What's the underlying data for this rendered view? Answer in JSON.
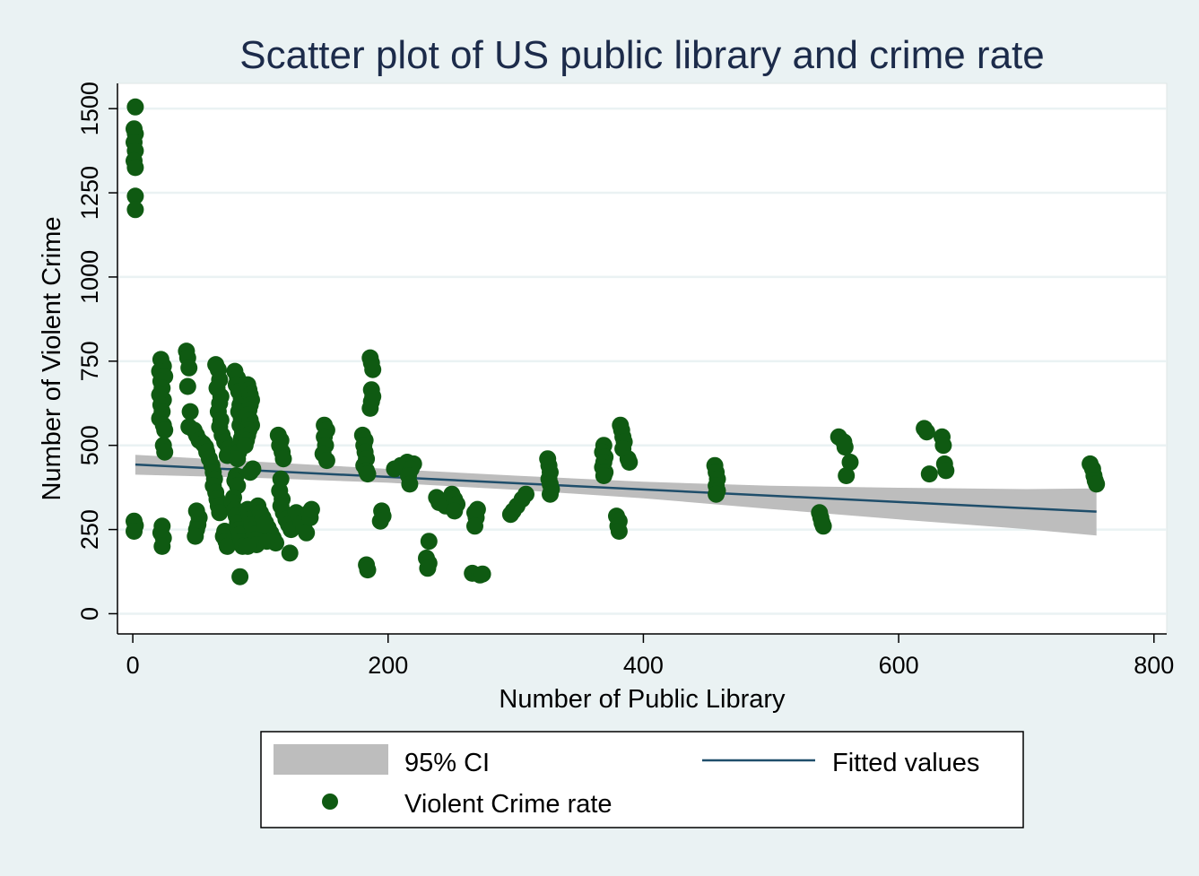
{
  "chart_data": {
    "type": "scatter",
    "title": "Scatter plot of US public library and crime rate",
    "xlabel": "Number of Public Library",
    "ylabel": "Number of Violent Crime",
    "xlim": [
      -12,
      810
    ],
    "ylim": [
      -60,
      1575
    ],
    "x_ticks": [
      0,
      200,
      400,
      600,
      800
    ],
    "y_ticks": [
      0,
      250,
      500,
      750,
      1000,
      1250,
      1500
    ],
    "grid": true,
    "legend_position": "bottom",
    "colors": {
      "points": "#0f5a12",
      "fit_line": "#1f4e6b",
      "ci_band": "#bdbdbd",
      "page_background": "#eaf2f3",
      "plot_background": "#ffffff",
      "title": "#1c2b4a"
    },
    "legend": {
      "ci": "95% CI",
      "fit": "Fitted values",
      "points": "Violent Crime rate"
    },
    "fitted_line": {
      "name": "Fitted values",
      "x": [
        2,
        755
      ],
      "y": [
        443,
        303
      ]
    },
    "ci_band": {
      "name": "95% CI",
      "x": [
        2,
        100,
        200,
        300,
        400,
        500,
        600,
        700,
        755
      ],
      "lower": [
        413,
        403,
        389,
        368,
        343,
        311,
        280,
        251,
        232
      ],
      "upper": [
        472,
        451,
        430,
        410,
        392,
        380,
        374,
        370,
        372
      ]
    },
    "series": [
      {
        "name": "Violent Crime rate",
        "points": [
          [
            2,
            1505
          ],
          [
            1,
            1440
          ],
          [
            2,
            1425
          ],
          [
            1,
            1400
          ],
          [
            2,
            1375
          ],
          [
            1,
            1345
          ],
          [
            2,
            1325
          ],
          [
            2,
            1240
          ],
          [
            2,
            1200
          ],
          [
            1,
            275
          ],
          [
            2,
            262
          ],
          [
            1,
            245
          ],
          [
            22,
            755
          ],
          [
            24,
            735
          ],
          [
            21,
            720
          ],
          [
            25,
            705
          ],
          [
            22,
            690
          ],
          [
            23,
            670
          ],
          [
            21,
            650
          ],
          [
            24,
            635
          ],
          [
            22,
            620
          ],
          [
            23,
            600
          ],
          [
            21,
            580
          ],
          [
            24,
            560
          ],
          [
            25,
            545
          ],
          [
            24,
            500
          ],
          [
            25,
            480
          ],
          [
            23,
            260
          ],
          [
            22,
            240
          ],
          [
            24,
            225
          ],
          [
            23,
            200
          ],
          [
            42,
            780
          ],
          [
            43,
            760
          ],
          [
            44,
            730
          ],
          [
            43,
            675
          ],
          [
            45,
            600
          ],
          [
            44,
            555
          ],
          [
            48,
            545
          ],
          [
            50,
            530
          ],
          [
            52,
            515
          ],
          [
            55,
            505
          ],
          [
            57,
            495
          ],
          [
            58,
            480
          ],
          [
            60,
            460
          ],
          [
            62,
            440
          ],
          [
            63,
            420
          ],
          [
            64,
            400
          ],
          [
            63,
            380
          ],
          [
            65,
            360
          ],
          [
            66,
            340
          ],
          [
            67,
            320
          ],
          [
            68,
            300
          ],
          [
            50,
            305
          ],
          [
            52,
            285
          ],
          [
            51,
            265
          ],
          [
            50,
            250
          ],
          [
            49,
            230
          ],
          [
            65,
            740
          ],
          [
            67,
            725
          ],
          [
            68,
            695
          ],
          [
            66,
            670
          ],
          [
            69,
            645
          ],
          [
            68,
            625
          ],
          [
            67,
            600
          ],
          [
            69,
            575
          ],
          [
            68,
            555
          ],
          [
            70,
            530
          ],
          [
            72,
            510
          ],
          [
            75,
            490
          ],
          [
            74,
            470
          ],
          [
            72,
            245
          ],
          [
            71,
            230
          ],
          [
            73,
            215
          ],
          [
            74,
            200
          ],
          [
            80,
            720
          ],
          [
            82,
            700
          ],
          [
            81,
            680
          ],
          [
            83,
            660
          ],
          [
            85,
            640
          ],
          [
            84,
            620
          ],
          [
            83,
            600
          ],
          [
            85,
            580
          ],
          [
            84,
            560
          ],
          [
            86,
            540
          ],
          [
            85,
            520
          ],
          [
            84,
            500
          ],
          [
            83,
            480
          ],
          [
            82,
            460
          ],
          [
            81,
            410
          ],
          [
            80,
            395
          ],
          [
            82,
            380
          ],
          [
            79,
            345
          ],
          [
            78,
            330
          ],
          [
            80,
            310
          ],
          [
            81,
            290
          ],
          [
            82,
            270
          ],
          [
            83,
            250
          ],
          [
            84,
            235
          ],
          [
            85,
            215
          ],
          [
            86,
            200
          ],
          [
            84,
            110
          ],
          [
            90,
            680
          ],
          [
            91,
            665
          ],
          [
            92,
            650
          ],
          [
            93,
            635
          ],
          [
            92,
            620
          ],
          [
            91,
            605
          ],
          [
            90,
            590
          ],
          [
            92,
            575
          ],
          [
            93,
            560
          ],
          [
            91,
            545
          ],
          [
            90,
            530
          ],
          [
            89,
            515
          ],
          [
            88,
            500
          ],
          [
            94,
            430
          ],
          [
            92,
            420
          ],
          [
            90,
            310
          ],
          [
            91,
            295
          ],
          [
            92,
            280
          ],
          [
            93,
            265
          ],
          [
            94,
            250
          ],
          [
            95,
            235
          ],
          [
            96,
            220
          ],
          [
            97,
            205
          ],
          [
            90,
            200
          ],
          [
            98,
            320
          ],
          [
            100,
            300
          ],
          [
            102,
            285
          ],
          [
            104,
            270
          ],
          [
            106,
            255
          ],
          [
            108,
            240
          ],
          [
            110,
            225
          ],
          [
            112,
            210
          ],
          [
            105,
            215
          ],
          [
            103,
            265
          ],
          [
            114,
            530
          ],
          [
            116,
            515
          ],
          [
            115,
            500
          ],
          [
            117,
            480
          ],
          [
            118,
            460
          ],
          [
            116,
            400
          ],
          [
            115,
            365
          ],
          [
            117,
            340
          ],
          [
            116,
            320
          ],
          [
            118,
            300
          ],
          [
            120,
            280
          ],
          [
            122,
            265
          ],
          [
            124,
            250
          ],
          [
            123,
            180
          ],
          [
            128,
            300
          ],
          [
            130,
            285
          ],
          [
            132,
            270
          ],
          [
            134,
            255
          ],
          [
            136,
            240
          ],
          [
            138,
            300
          ],
          [
            139,
            285
          ],
          [
            140,
            310
          ],
          [
            150,
            560
          ],
          [
            152,
            545
          ],
          [
            150,
            525
          ],
          [
            151,
            500
          ],
          [
            149,
            475
          ],
          [
            152,
            455
          ],
          [
            180,
            530
          ],
          [
            182,
            515
          ],
          [
            181,
            500
          ],
          [
            182,
            480
          ],
          [
            183,
            460
          ],
          [
            181,
            440
          ],
          [
            183,
            425
          ],
          [
            184,
            415
          ],
          [
            183,
            145
          ],
          [
            184,
            130
          ],
          [
            186,
            760
          ],
          [
            187,
            745
          ],
          [
            188,
            725
          ],
          [
            187,
            665
          ],
          [
            188,
            645
          ],
          [
            187,
            630
          ],
          [
            186,
            610
          ],
          [
            195,
            305
          ],
          [
            196,
            290
          ],
          [
            194,
            275
          ],
          [
            205,
            430
          ],
          [
            210,
            440
          ],
          [
            215,
            450
          ],
          [
            220,
            445
          ],
          [
            218,
            430
          ],
          [
            216,
            410
          ],
          [
            217,
            385
          ],
          [
            232,
            215
          ],
          [
            230,
            165
          ],
          [
            232,
            150
          ],
          [
            231,
            135
          ],
          [
            238,
            345
          ],
          [
            240,
            330
          ],
          [
            245,
            320
          ],
          [
            250,
            355
          ],
          [
            252,
            340
          ],
          [
            254,
            325
          ],
          [
            252,
            305
          ],
          [
            268,
            300
          ],
          [
            269,
            285
          ],
          [
            270,
            310
          ],
          [
            268,
            260
          ],
          [
            266,
            120
          ],
          [
            272,
            115
          ],
          [
            274,
            118
          ],
          [
            296,
            295
          ],
          [
            298,
            305
          ],
          [
            301,
            320
          ],
          [
            305,
            340
          ],
          [
            308,
            355
          ],
          [
            325,
            460
          ],
          [
            326,
            440
          ],
          [
            327,
            420
          ],
          [
            326,
            400
          ],
          [
            327,
            385
          ],
          [
            328,
            370
          ],
          [
            327,
            355
          ],
          [
            369,
            500
          ],
          [
            368,
            480
          ],
          [
            370,
            465
          ],
          [
            369,
            450
          ],
          [
            368,
            435
          ],
          [
            370,
            420
          ],
          [
            369,
            410
          ],
          [
            382,
            560
          ],
          [
            383,
            545
          ],
          [
            384,
            525
          ],
          [
            385,
            510
          ],
          [
            384,
            490
          ],
          [
            388,
            460
          ],
          [
            389,
            450
          ],
          [
            379,
            290
          ],
          [
            381,
            275
          ],
          [
            380,
            260
          ],
          [
            381,
            245
          ],
          [
            456,
            440
          ],
          [
            457,
            420
          ],
          [
            458,
            400
          ],
          [
            457,
            380
          ],
          [
            458,
            365
          ],
          [
            457,
            355
          ],
          [
            538,
            300
          ],
          [
            539,
            285
          ],
          [
            540,
            270
          ],
          [
            541,
            260
          ],
          [
            553,
            525
          ],
          [
            557,
            510
          ],
          [
            558,
            495
          ],
          [
            559,
            410
          ],
          [
            562,
            450
          ],
          [
            620,
            550
          ],
          [
            622,
            540
          ],
          [
            624,
            415
          ],
          [
            634,
            525
          ],
          [
            635,
            500
          ],
          [
            636,
            445
          ],
          [
            637,
            425
          ],
          [
            750,
            445
          ],
          [
            752,
            430
          ],
          [
            753,
            410
          ],
          [
            754,
            395
          ],
          [
            755,
            385
          ]
        ]
      }
    ]
  }
}
